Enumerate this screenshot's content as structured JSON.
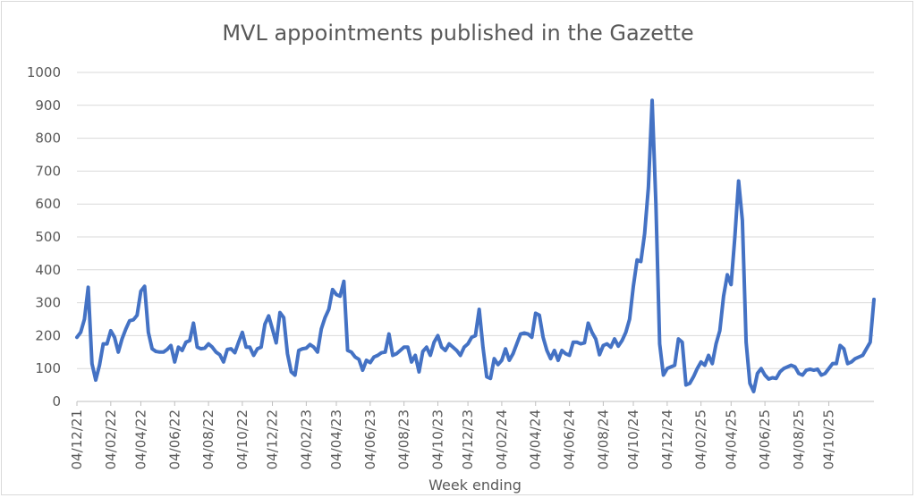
{
  "chart_data": {
    "type": "line",
    "title": "MVL appointments published in the Gazette",
    "xlabel": "Week ending",
    "ylabel": "",
    "ylim": [
      0,
      1000
    ],
    "yticks": [
      0,
      100,
      200,
      300,
      400,
      500,
      600,
      700,
      800,
      900,
      1000
    ],
    "grid": true,
    "legend": "none",
    "color": "#4472c4",
    "x_start": "04/12/21",
    "x_interval": "weekly",
    "x_tick_labels": [
      "04/12/21",
      "04/02/22",
      "04/04/22",
      "04/06/22",
      "04/08/22",
      "04/10/22",
      "04/12/22",
      "04/02/23",
      "04/04/23",
      "04/06/23",
      "04/08/23",
      "04/10/23",
      "04/12/23",
      "04/02/24",
      "04/04/24",
      "04/06/24",
      "04/08/24",
      "04/10/24",
      "04/12/24",
      "04/02/25",
      "04/04/25",
      "04/06/25",
      "04/08/25",
      "04/10/25"
    ],
    "x_tick_every": [
      0,
      9,
      17,
      26,
      35,
      44,
      52,
      61,
      69,
      78,
      87,
      96,
      104,
      113,
      122,
      131,
      140,
      148,
      157,
      166,
      174,
      183,
      192,
      200
    ],
    "values": [
      195,
      210,
      250,
      347,
      115,
      65,
      110,
      175,
      175,
      215,
      195,
      150,
      190,
      220,
      245,
      248,
      262,
      335,
      350,
      210,
      160,
      152,
      150,
      150,
      158,
      170,
      120,
      165,
      155,
      180,
      185,
      238,
      165,
      160,
      162,
      175,
      165,
      150,
      142,
      120,
      158,
      160,
      148,
      180,
      210,
      165,
      165,
      140,
      160,
      165,
      235,
      260,
      220,
      178,
      270,
      255,
      145,
      90,
      80,
      155,
      160,
      162,
      173,
      165,
      150,
      220,
      255,
      280,
      340,
      325,
      320,
      365,
      155,
      150,
      135,
      128,
      95,
      125,
      118,
      135,
      140,
      148,
      150,
      205,
      140,
      145,
      155,
      165,
      165,
      120,
      140,
      90,
      152,
      165,
      140,
      180,
      200,
      165,
      155,
      175,
      165,
      155,
      140,
      165,
      175,
      195,
      200,
      280,
      165,
      75,
      70,
      130,
      112,
      125,
      160,
      125,
      145,
      175,
      205,
      208,
      205,
      195,
      268,
      262,
      195,
      155,
      130,
      155,
      125,
      155,
      145,
      140,
      180,
      180,
      175,
      178,
      238,
      210,
      190,
      142,
      170,
      175,
      165,
      190,
      168,
      185,
      210,
      250,
      350,
      430,
      425,
      510,
      650,
      915,
      600,
      175,
      80,
      100,
      105,
      110,
      190,
      180,
      50,
      55,
      75,
      100,
      120,
      110,
      140,
      115,
      175,
      215,
      320,
      385,
      355,
      500,
      670,
      550,
      180,
      55,
      30,
      85,
      100,
      80,
      68,
      72,
      70,
      90,
      100,
      105,
      110,
      105,
      85,
      80,
      95,
      98,
      95,
      98,
      80,
      85,
      100,
      115,
      115,
      170,
      160,
      115,
      120,
      130,
      135,
      140,
      160,
      180,
      310
    ]
  }
}
